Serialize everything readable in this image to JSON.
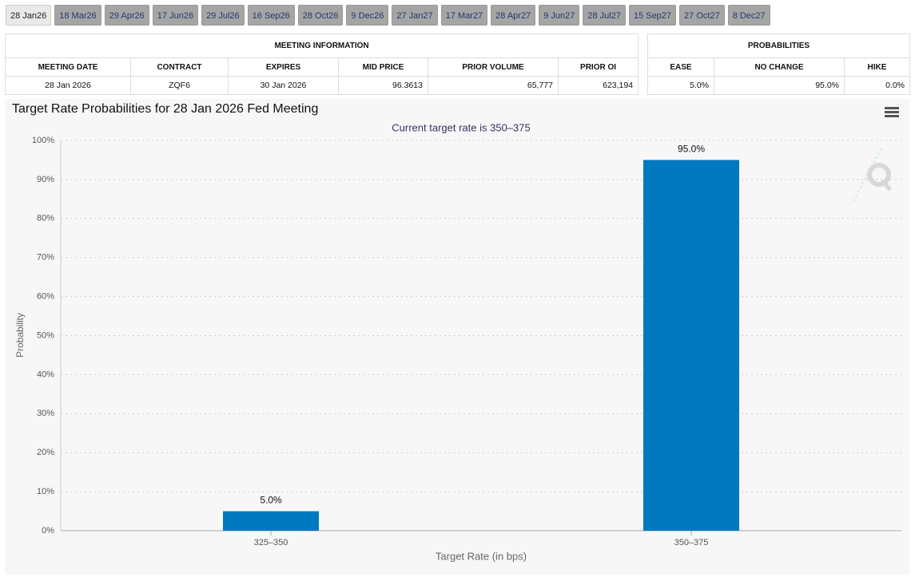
{
  "tabs": [
    "28 Jan26",
    "18 Mar26",
    "29 Apr26",
    "17 Jun26",
    "29 Jul26",
    "16 Sep26",
    "28 Oct26",
    "9 Dec26",
    "27 Jan27",
    "17 Mar27",
    "28 Apr27",
    "9 Jun27",
    "28 Jul27",
    "15 Sep27",
    "27 Oct27",
    "8 Dec27"
  ],
  "meeting_info": {
    "title": "MEETING INFORMATION",
    "headers": [
      "MEETING DATE",
      "CONTRACT",
      "EXPIRES",
      "MID PRICE",
      "PRIOR VOLUME",
      "PRIOR OI"
    ],
    "rows": [
      [
        "28 Jan 2026",
        "ZQF6",
        "30 Jan 2026",
        "96.3613",
        "65,777",
        "623,194"
      ]
    ]
  },
  "probabilities": {
    "title": "PROBABILITIES",
    "headers": [
      "EASE",
      "NO CHANGE",
      "HIKE"
    ],
    "rows": [
      [
        "5.0%",
        "95.0%",
        "0.0%"
      ]
    ]
  },
  "chart_data": {
    "type": "bar",
    "title": "Target Rate Probabilities for 28 Jan 2026 Fed Meeting",
    "subtitle": "Current target rate is 350–375",
    "x_label": "Target Rate (in bps)",
    "y_label": "Probability",
    "categories": [
      "325–350",
      "350–375"
    ],
    "values": [
      5,
      95
    ],
    "value_labels": [
      "5.0%",
      "95.0%"
    ],
    "color": "#0079c1",
    "ylim": [
      0,
      100
    ],
    "yticks": [
      {
        "value": 0,
        "label": "0%"
      },
      {
        "value": 10,
        "label": "10%"
      },
      {
        "value": 20,
        "label": "20%"
      },
      {
        "value": 30,
        "label": "30%"
      },
      {
        "value": 40,
        "label": "40%"
      },
      {
        "value": 50,
        "label": "50%"
      },
      {
        "value": 60,
        "label": "60%"
      },
      {
        "value": 70,
        "label": "70%"
      },
      {
        "value": 80,
        "label": "80%"
      },
      {
        "value": 90,
        "label": "90%"
      },
      {
        "value": 100,
        "label": "100%"
      }
    ],
    "grid": true
  }
}
